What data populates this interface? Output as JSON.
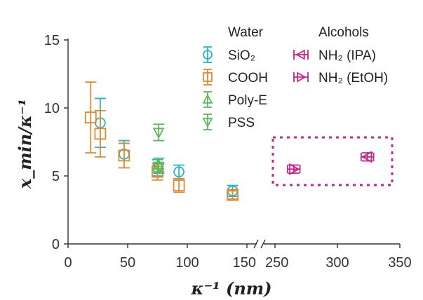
{
  "chart_data": {
    "type": "scatter",
    "title": "",
    "xlabel": "κ⁻¹ (nm)",
    "ylabel": "x_min/κ⁻¹",
    "x_axis": {
      "broken": true,
      "segments": [
        {
          "range": [
            0,
            150
          ],
          "ticks": [
            0,
            50,
            100,
            150
          ]
        },
        {
          "range": [
            250,
            350
          ],
          "ticks": [
            250,
            300,
            350
          ]
        }
      ]
    },
    "ylim": [
      0,
      15
    ],
    "yticks": [
      0,
      5,
      10,
      15
    ],
    "grid": false,
    "legend": {
      "columns": [
        {
          "title": "Water",
          "placement": "top-center",
          "entries": [
            "SiO₂",
            "COOH",
            "Poly-E",
            "PSS"
          ]
        },
        {
          "title": "Alcohols",
          "placement": "top-right",
          "entries": [
            "NH₂ (IPA)",
            "NH₂ (EtOH)"
          ]
        }
      ]
    },
    "series": [
      {
        "name": "SiO₂",
        "group": "Water",
        "marker": "circle",
        "color": "#2ab3c9",
        "points": [
          {
            "x": 27,
            "y": 8.9,
            "yerr": 1.8
          },
          {
            "x": 47,
            "y": 6.6,
            "yerr": 1.0
          },
          {
            "x": 75,
            "y": 5.6,
            "yerr": 0.6
          },
          {
            "x": 93,
            "y": 5.3,
            "yerr": 0.5
          },
          {
            "x": 138,
            "y": 3.9,
            "yerr": 0.4
          }
        ]
      },
      {
        "name": "COOH",
        "group": "Water",
        "marker": "square",
        "color": "#e08a2e",
        "points": [
          {
            "x": 19,
            "y": 9.3,
            "yerr": 2.6
          },
          {
            "x": 27,
            "y": 8.1,
            "yerr": 1.7
          },
          {
            "x": 47,
            "y": 6.5,
            "yerr": 0.9
          },
          {
            "x": 75,
            "y": 5.3,
            "yerr": 0.6
          },
          {
            "x": 93,
            "y": 4.3,
            "yerr": 0.5
          },
          {
            "x": 138,
            "y": 3.6,
            "yerr": 0.3
          }
        ]
      },
      {
        "name": "Poly-E",
        "group": "Water",
        "marker": "triangle-up",
        "color": "#5cb85c",
        "points": [
          {
            "x": 76,
            "y": 5.8,
            "yerr": 0.5
          }
        ]
      },
      {
        "name": "PSS",
        "group": "Water",
        "marker": "triangle-down",
        "color": "#5cb85c",
        "points": [
          {
            "x": 76,
            "y": 8.2,
            "yerr": 0.6
          },
          {
            "x": 76,
            "y": 5.6,
            "yerr": 0.4
          }
        ]
      },
      {
        "name": "NH₂ (IPA)",
        "group": "Alcohols",
        "marker": "triangle-left",
        "color": "#c4268c",
        "points": [
          {
            "x": 324,
            "y": 6.4,
            "xerr": 5,
            "yerr": 0.3
          }
        ]
      },
      {
        "name": "NH₂ (EtOH)",
        "group": "Alcohols",
        "marker": "triangle-right",
        "color": "#c4268c",
        "points": [
          {
            "x": 265,
            "y": 5.5,
            "xerr": 5,
            "yerr": 0.3
          }
        ]
      }
    ],
    "annotations": [
      {
        "type": "dotted-box",
        "color": "#c4268c",
        "encloses": [
          "NH₂ (IPA)",
          "NH₂ (EtOH)"
        ]
      }
    ]
  }
}
